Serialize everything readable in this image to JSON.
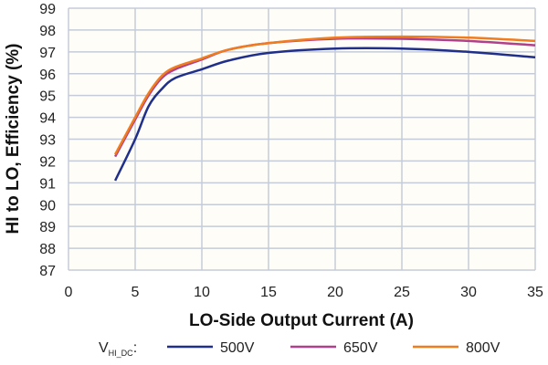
{
  "chart_data": {
    "type": "line",
    "xlabel": "LO-Side Output Current (A)",
    "ylabel": "HI to LO, Efficiency (%)",
    "xlim": [
      0,
      35
    ],
    "ylim": [
      87,
      99
    ],
    "xticks": [
      "0",
      "5",
      "10",
      "15",
      "20",
      "25",
      "30",
      "35"
    ],
    "yticks": [
      "87",
      "88",
      "89",
      "90",
      "91",
      "92",
      "93",
      "94",
      "95",
      "96",
      "97",
      "98",
      "99"
    ],
    "grid": true,
    "legend_position": "bottom",
    "legend_title": "V",
    "legend_title_sub": "HI_DC",
    "legend_title_suffix": ":",
    "series": [
      {
        "name": "500V",
        "color": "#1f2f8a",
        "x": [
          3.5,
          5,
          6,
          7,
          8,
          10,
          12,
          15,
          20,
          25,
          30,
          35
        ],
        "y": [
          91.1,
          93.0,
          94.5,
          95.3,
          95.8,
          96.2,
          96.6,
          96.95,
          97.15,
          97.15,
          97.0,
          96.75
        ]
      },
      {
        "name": "650V",
        "color": "#b0408a",
        "x": [
          3.5,
          5,
          6,
          7,
          8,
          10,
          12,
          15,
          20,
          25,
          30,
          35
        ],
        "y": [
          92.2,
          93.9,
          95.0,
          95.8,
          96.2,
          96.65,
          97.1,
          97.4,
          97.6,
          97.6,
          97.5,
          97.3
        ]
      },
      {
        "name": "800V",
        "color": "#f07c1e",
        "x": [
          3.5,
          5,
          6,
          7,
          8,
          10,
          12,
          15,
          20,
          25,
          30,
          35
        ],
        "y": [
          92.3,
          94.0,
          95.1,
          95.9,
          96.3,
          96.7,
          97.1,
          97.4,
          97.65,
          97.7,
          97.65,
          97.5
        ]
      }
    ]
  }
}
